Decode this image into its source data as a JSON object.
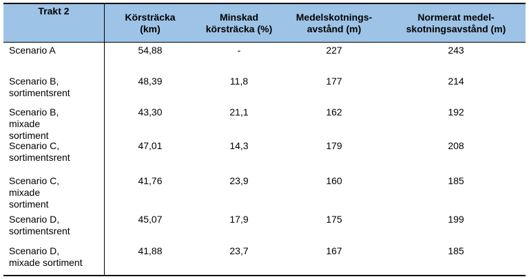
{
  "table": {
    "headers": [
      [
        "Trakt 2"
      ],
      [
        "Körsträcka",
        "(km)"
      ],
      [
        "Minskad",
        "körsträcka (%)"
      ],
      [
        "Medelskotnings-",
        "avstånd (m)"
      ],
      [
        "Normerat medel-",
        "skotningsavstånd (m)"
      ]
    ],
    "rows": [
      {
        "label": [
          "Scenario A"
        ],
        "values": [
          "54,88",
          "-",
          "227",
          "243"
        ]
      },
      {
        "label": [
          "Scenario B,",
          "sortimentsrent"
        ],
        "values": [
          "48,39",
          "11,8",
          "177",
          "214"
        ]
      },
      {
        "label": [
          "Scenario B,",
          "mixade",
          "sortiment"
        ],
        "values": [
          "43,30",
          "21,1",
          "162",
          "192"
        ]
      },
      {
        "label": [
          "Scenario C,",
          "sortimentsrent"
        ],
        "values": [
          "47,01",
          "14,3",
          "179",
          "208"
        ]
      },
      {
        "label": [
          "Scenario C,",
          "mixade",
          "sortiment"
        ],
        "values": [
          "41,76",
          "23,9",
          "160",
          "185"
        ]
      },
      {
        "label": [
          "Scenario D,",
          "sortimentsrent"
        ],
        "values": [
          "45,07",
          "17,9",
          "175",
          "199"
        ]
      },
      {
        "label": [
          "Scenario D,",
          "mixade sortiment"
        ],
        "values": [
          "41,88",
          "23,7",
          "167",
          "185"
        ]
      }
    ]
  }
}
